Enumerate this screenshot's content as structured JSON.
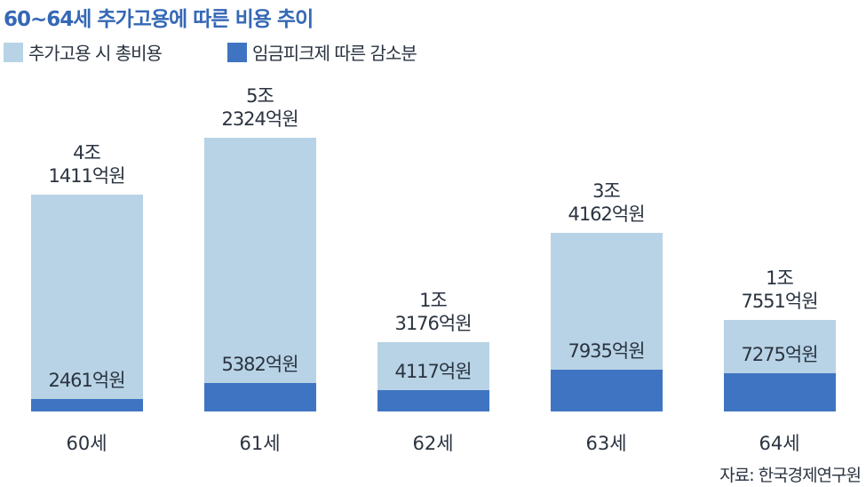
{
  "chart_data": {
    "type": "bar",
    "title": "60~64세 추가고용에 따른 비용 추이",
    "categories": [
      "60세",
      "61세",
      "62세",
      "63세",
      "64세"
    ],
    "series": [
      {
        "name": "추가고용 시 총비용",
        "color": "#b8d3e6",
        "values": [
          41411,
          52324,
          13176,
          34162,
          17551
        ],
        "value_labels": [
          "4조\n1411억원",
          "5조\n2324억원",
          "1조\n3176억원",
          "3조\n4162억원",
          "1조\n7551억원"
        ]
      },
      {
        "name": "임금피크제 따른 감소분",
        "color": "#3f74c2",
        "values": [
          2461,
          5382,
          4117,
          7935,
          7275
        ],
        "value_labels": [
          "2461억원",
          "5382억원",
          "4117억원",
          "7935억원",
          "7275억원"
        ]
      }
    ],
    "source": "자료: 한국경제연구원"
  }
}
